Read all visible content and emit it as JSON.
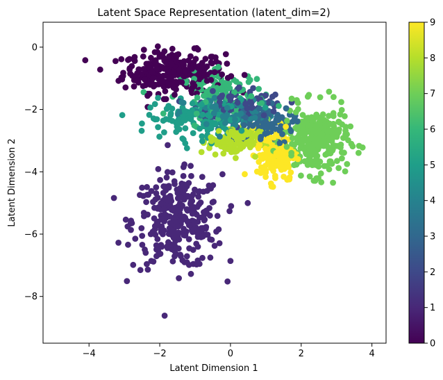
{
  "chart_data": {
    "type": "scatter",
    "title": "Latent Space Representation (latent_dim=2)",
    "xlabel": "Latent Dimension 1",
    "ylabel": "Latent Dimension 2",
    "xlim": [
      -5.3,
      4.4
    ],
    "ylim": [
      -9.5,
      0.8
    ],
    "x_ticks": [
      -4,
      -2,
      0,
      2,
      4
    ],
    "y_ticks": [
      0,
      -2,
      -4,
      -6,
      -8
    ],
    "grid": false,
    "colormap": "viridis",
    "colorbar": {
      "min": 0,
      "max": 9,
      "ticks": [
        0,
        1,
        2,
        3,
        4,
        5,
        6,
        7,
        8,
        9
      ],
      "colors": [
        "#440154",
        "#482878",
        "#3e4989",
        "#31688e",
        "#26828e",
        "#1f9e89",
        "#35b779",
        "#6ece58",
        "#b5de2b",
        "#fde725"
      ]
    },
    "clusters": [
      {
        "label": 0,
        "center": [
          -1.6,
          -0.8
        ],
        "spread": [
          1.2,
          0.55
        ],
        "count": 300
      },
      {
        "label": 1,
        "center": [
          -1.5,
          -5.6
        ],
        "spread": [
          1.05,
          1.25
        ],
        "count": 320
      },
      {
        "label": 2,
        "center": [
          0.3,
          -1.8
        ],
        "spread": [
          1.0,
          0.45
        ],
        "count": 90
      },
      {
        "label": 3,
        "center": [
          0.9,
          -2.5
        ],
        "spread": [
          0.7,
          0.5
        ],
        "count": 110
      },
      {
        "label": 4,
        "center": [
          0.0,
          -2.2
        ],
        "spread": [
          1.1,
          0.5
        ],
        "count": 90
      },
      {
        "label": 5,
        "center": [
          -0.9,
          -2.3
        ],
        "spread": [
          1.2,
          0.5
        ],
        "count": 140
      },
      {
        "label": 6,
        "center": [
          -0.2,
          -1.5
        ],
        "spread": [
          1.0,
          0.6
        ],
        "count": 110
      },
      {
        "label": 7,
        "center": [
          2.4,
          -3.0
        ],
        "spread": [
          0.75,
          0.9
        ],
        "count": 280
      },
      {
        "label": 8,
        "center": [
          0.1,
          -3.0
        ],
        "spread": [
          0.6,
          0.4
        ],
        "count": 130
      },
      {
        "label": 9,
        "center": [
          1.3,
          -3.4
        ],
        "spread": [
          0.45,
          0.75
        ],
        "count": 180
      }
    ]
  }
}
